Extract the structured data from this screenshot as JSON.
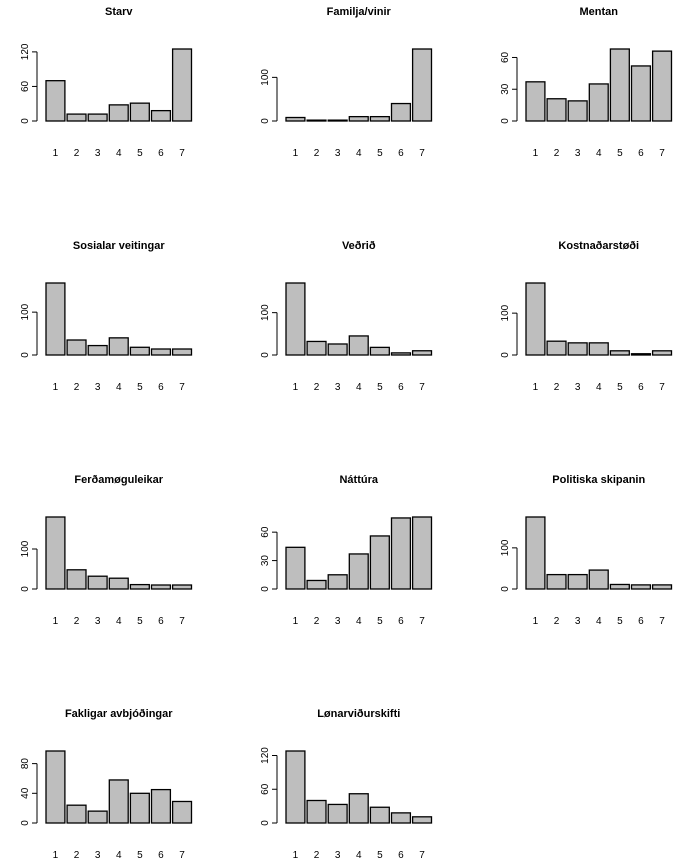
{
  "colors": {
    "bar_fill": "#bebebe",
    "bar_stroke": "#000000",
    "axis": "#000000",
    "background": "#ffffff"
  },
  "chart_data": [
    {
      "type": "bar",
      "title": "Starv",
      "categories": [
        "1",
        "2",
        "3",
        "4",
        "5",
        "6",
        "7"
      ],
      "values": [
        70,
        12,
        12,
        28,
        31,
        18,
        125
      ],
      "ylim": [
        0,
        125
      ],
      "yticks": [
        "0",
        "60",
        "120"
      ],
      "ytick_values": [
        0,
        60,
        120
      ]
    },
    {
      "type": "bar",
      "title": "Familja/vinir",
      "categories": [
        "1",
        "2",
        "3",
        "4",
        "5",
        "6",
        "7"
      ],
      "values": [
        8,
        2,
        2,
        10,
        10,
        40,
        165
      ],
      "ylim": [
        0,
        165
      ],
      "yticks": [
        "0",
        "100"
      ],
      "ytick_values": [
        0,
        100
      ]
    },
    {
      "type": "bar",
      "title": "Mentan",
      "categories": [
        "1",
        "2",
        "3",
        "4",
        "5",
        "6",
        "7"
      ],
      "values": [
        37,
        21,
        19,
        35,
        68,
        52,
        66
      ],
      "ylim": [
        0,
        68
      ],
      "yticks": [
        "0",
        "30",
        "60"
      ],
      "ytick_values": [
        0,
        30,
        60
      ]
    },
    {
      "type": "bar",
      "title": "Sosialar  veitingar",
      "categories": [
        "1",
        "2",
        "3",
        "4",
        "5",
        "6",
        "7"
      ],
      "values": [
        168,
        35,
        22,
        40,
        18,
        14,
        14
      ],
      "ylim": [
        0,
        168
      ],
      "yticks": [
        "0",
        "100"
      ],
      "ytick_values": [
        0,
        100
      ]
    },
    {
      "type": "bar",
      "title": "Veðrið",
      "categories": [
        "1",
        "2",
        "3",
        "4",
        "5",
        "6",
        "7"
      ],
      "values": [
        170,
        32,
        26,
        45,
        18,
        5,
        10
      ],
      "ylim": [
        0,
        170
      ],
      "yticks": [
        "0",
        "100"
      ],
      "ytick_values": [
        0,
        100
      ]
    },
    {
      "type": "bar",
      "title": "Kostnaðarstøði",
      "categories": [
        "1",
        "2",
        "3",
        "4",
        "5",
        "6",
        "7"
      ],
      "values": [
        172,
        33,
        29,
        29,
        10,
        3,
        10
      ],
      "ylim": [
        0,
        172
      ],
      "yticks": [
        "0",
        "100"
      ],
      "ytick_values": [
        0,
        100
      ]
    },
    {
      "type": "bar",
      "title": "Ferðamøguleikar",
      "categories": [
        "1",
        "2",
        "3",
        "4",
        "5",
        "6",
        "7"
      ],
      "values": [
        180,
        48,
        32,
        27,
        11,
        10,
        10
      ],
      "ylim": [
        0,
        180
      ],
      "yticks": [
        "0",
        "100"
      ],
      "ytick_values": [
        0,
        100
      ]
    },
    {
      "type": "bar",
      "title": "Náttúra",
      "categories": [
        "1",
        "2",
        "3",
        "4",
        "5",
        "6",
        "7"
      ],
      "values": [
        44,
        9,
        15,
        37,
        56,
        75,
        76
      ],
      "ylim": [
        0,
        76
      ],
      "yticks": [
        "0",
        "30",
        "60"
      ],
      "ytick_values": [
        0,
        30,
        60
      ]
    },
    {
      "type": "bar",
      "title": "Politiska skipanin",
      "categories": [
        "1",
        "2",
        "3",
        "4",
        "5",
        "6",
        "7"
      ],
      "values": [
        175,
        35,
        35,
        46,
        11,
        10,
        10
      ],
      "ylim": [
        0,
        175
      ],
      "yticks": [
        "0",
        "100"
      ],
      "ytick_values": [
        0,
        100
      ]
    },
    {
      "type": "bar",
      "title": "Fakligar  avbjóðingar",
      "categories": [
        "1",
        "2",
        "3",
        "4",
        "5",
        "6",
        "7"
      ],
      "values": [
        97,
        24,
        16,
        58,
        40,
        45,
        29
      ],
      "ylim": [
        0,
        97
      ],
      "yticks": [
        "0",
        "40",
        "80"
      ],
      "ytick_values": [
        0,
        40,
        80
      ]
    },
    {
      "type": "bar",
      "title": "Lønarviðurskifti",
      "categories": [
        "1",
        "2",
        "3",
        "4",
        "5",
        "6",
        "7"
      ],
      "values": [
        128,
        40,
        33,
        52,
        28,
        18,
        11
      ],
      "ylim": [
        0,
        128
      ],
      "yticks": [
        "0",
        "60",
        "120"
      ],
      "ytick_values": [
        0,
        60,
        120
      ]
    }
  ]
}
